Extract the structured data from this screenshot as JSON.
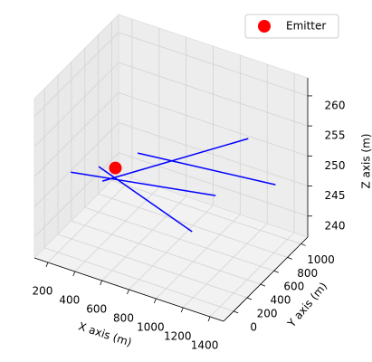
{
  "chart_data": {
    "type": "line3d",
    "xlabel": "X axis (m)",
    "ylabel": "Y axis (m)",
    "zlabel": "Z axis (m)",
    "xlim": [
      100,
      1500
    ],
    "ylim": [
      -150,
      1100
    ],
    "zlim": [
      236.5,
      263
    ],
    "xticks": [
      200,
      400,
      600,
      800,
      1000,
      1200,
      1400
    ],
    "yticks": [
      0,
      200,
      400,
      600,
      800,
      1000
    ],
    "zticks": [
      240,
      245,
      250,
      255,
      260
    ],
    "grid": true,
    "legend": "upper right",
    "emitter": {
      "name": "Emitter",
      "color": "red",
      "x": [
        500
      ],
      "y": [
        250
      ],
      "z": [
        250
      ]
    },
    "lines": [
      {
        "color": "blue",
        "x": [
          276,
          1209
        ],
        "y": [
          37,
          316
        ],
        "z": [
          250,
          250
        ]
      },
      {
        "color": "blue",
        "x": [
          501,
          1074
        ],
        "y": [
          55,
          1072
        ],
        "z": [
          250,
          250
        ]
      },
      {
        "color": "blue",
        "x": [
          541,
          1481
        ],
        "y": [
          499,
          660
        ],
        "z": [
          250,
          250
        ]
      },
      {
        "color": "blue",
        "x": [
          400,
          1012
        ],
        "y": [
          203,
          362
        ],
        "z": [
          250,
          242
        ]
      }
    ]
  }
}
